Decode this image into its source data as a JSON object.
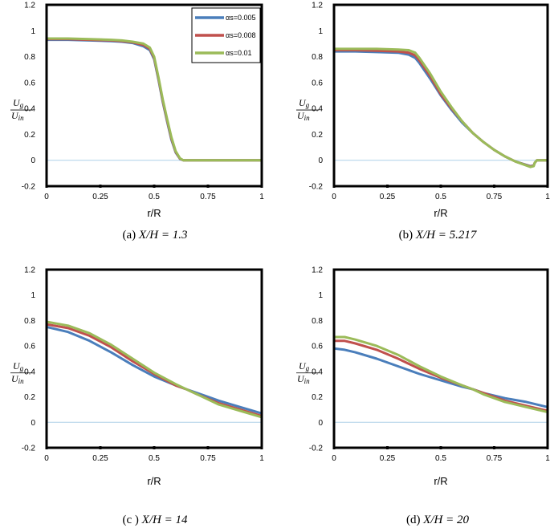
{
  "figure": {
    "ylabel_num": "U",
    "ylabel_num_sub": "g",
    "ylabel_den": "U",
    "ylabel_den_sub": "in",
    "legend": [
      "αs=0.005",
      "αs=0.008",
      "αs=0.01"
    ],
    "colors": {
      "series": [
        "#4a7ebb",
        "#c0504d",
        "#9bbb59"
      ],
      "zero_line": "#aed1e8",
      "frame": "#000000"
    }
  },
  "chart_data": [
    {
      "type": "line",
      "panel": "a",
      "caption_prefix": "(a) ",
      "caption_math": "X/H = 1.3",
      "xlabel": "r/R",
      "xlim": [
        0,
        1
      ],
      "ylim": [
        -0.2,
        1.2
      ],
      "xticks": [
        "0",
        "0.25",
        "0.5",
        "0.75",
        "1"
      ],
      "yticks": [
        "-0.2",
        "0",
        "0.2",
        "0.4",
        "0.6",
        "0.8",
        "1",
        "1.2"
      ],
      "show_legend": true,
      "x": [
        0,
        0.1,
        0.2,
        0.3,
        0.35,
        0.4,
        0.45,
        0.48,
        0.5,
        0.52,
        0.54,
        0.56,
        0.58,
        0.6,
        0.62,
        0.635,
        0.65,
        0.7,
        0.8,
        0.9,
        1.0
      ],
      "series": [
        {
          "name": "αs=0.005",
          "values": [
            0.93,
            0.93,
            0.925,
            0.92,
            0.915,
            0.905,
            0.88,
            0.85,
            0.78,
            0.62,
            0.45,
            0.3,
            0.16,
            0.06,
            0.01,
            0.0,
            0.0,
            0.0,
            0.0,
            0.0,
            0.0
          ]
        },
        {
          "name": "αs=0.008",
          "values": [
            0.935,
            0.935,
            0.93,
            0.925,
            0.92,
            0.91,
            0.89,
            0.86,
            0.79,
            0.63,
            0.46,
            0.31,
            0.17,
            0.065,
            0.012,
            0.0,
            0.0,
            0.0,
            0.0,
            0.0,
            0.0
          ]
        },
        {
          "name": "αs=0.01",
          "values": [
            0.94,
            0.94,
            0.935,
            0.93,
            0.925,
            0.915,
            0.9,
            0.87,
            0.8,
            0.64,
            0.47,
            0.32,
            0.18,
            0.07,
            0.015,
            0.0,
            0.0,
            0.0,
            0.0,
            0.0,
            0.0
          ]
        }
      ]
    },
    {
      "type": "line",
      "panel": "b",
      "caption_prefix": "(b) ",
      "caption_math": "X/H = 5.217",
      "xlabel": "r/R",
      "xlim": [
        0,
        1
      ],
      "ylim": [
        -0.2,
        1.2
      ],
      "xticks": [
        "0",
        "0.25",
        "0.5",
        "0.75",
        "1"
      ],
      "yticks": [
        "-0.2",
        "0",
        "0.2",
        "0.4",
        "0.6",
        "0.8",
        "1",
        "1.2"
      ],
      "show_legend": false,
      "x": [
        0,
        0.1,
        0.2,
        0.3,
        0.35,
        0.38,
        0.4,
        0.45,
        0.5,
        0.55,
        0.6,
        0.65,
        0.7,
        0.75,
        0.8,
        0.85,
        0.9,
        0.92,
        0.935,
        0.94,
        0.95,
        1.0
      ],
      "series": [
        {
          "name": "αs=0.005",
          "values": [
            0.84,
            0.84,
            0.835,
            0.83,
            0.815,
            0.79,
            0.75,
            0.63,
            0.5,
            0.39,
            0.29,
            0.21,
            0.14,
            0.08,
            0.03,
            -0.01,
            -0.035,
            -0.045,
            -0.04,
            -0.02,
            0.0,
            0.0
          ]
        },
        {
          "name": "αs=0.008",
          "values": [
            0.85,
            0.85,
            0.845,
            0.84,
            0.83,
            0.81,
            0.77,
            0.65,
            0.51,
            0.4,
            0.3,
            0.21,
            0.14,
            0.08,
            0.03,
            -0.01,
            -0.038,
            -0.048,
            -0.042,
            -0.02,
            0.0,
            0.0
          ]
        },
        {
          "name": "αs=0.01",
          "values": [
            0.86,
            0.86,
            0.86,
            0.855,
            0.85,
            0.83,
            0.79,
            0.67,
            0.53,
            0.41,
            0.3,
            0.21,
            0.14,
            0.08,
            0.03,
            -0.01,
            -0.04,
            -0.052,
            -0.045,
            -0.02,
            0.0,
            0.0
          ]
        }
      ]
    },
    {
      "type": "line",
      "panel": "c",
      "caption_prefix": "(c ) ",
      "caption_math": "X/H = 14",
      "xlabel": "r/R",
      "xlim": [
        0,
        1
      ],
      "ylim": [
        -0.2,
        1.2
      ],
      "xticks": [
        "0",
        "0.25",
        "0.5",
        "0.75",
        "1"
      ],
      "yticks": [
        "-0.2",
        "0",
        "0.2",
        "0.4",
        "0.6",
        "0.8",
        "1",
        "1.2"
      ],
      "show_legend": false,
      "x": [
        0,
        0.1,
        0.2,
        0.3,
        0.4,
        0.5,
        0.6,
        0.65,
        0.7,
        0.8,
        0.9,
        1.0
      ],
      "series": [
        {
          "name": "αs=0.005",
          "values": [
            0.75,
            0.71,
            0.64,
            0.55,
            0.45,
            0.36,
            0.29,
            0.26,
            0.23,
            0.17,
            0.12,
            0.07
          ]
        },
        {
          "name": "αs=0.008",
          "values": [
            0.77,
            0.74,
            0.68,
            0.59,
            0.48,
            0.38,
            0.29,
            0.26,
            0.22,
            0.15,
            0.1,
            0.05
          ]
        },
        {
          "name": "αs=0.01",
          "values": [
            0.79,
            0.76,
            0.7,
            0.61,
            0.5,
            0.39,
            0.3,
            0.26,
            0.22,
            0.14,
            0.09,
            0.04
          ]
        }
      ]
    },
    {
      "type": "line",
      "panel": "d",
      "caption_prefix": "(d) ",
      "caption_math": "X/H = 20",
      "xlabel": "r/R",
      "xlim": [
        0,
        1
      ],
      "ylim": [
        -0.2,
        1.2
      ],
      "xticks": [
        "0",
        "0.25",
        "0.5",
        "0.75",
        "1"
      ],
      "yticks": [
        "-0.2",
        "0",
        "0.2",
        "0.4",
        "0.6",
        "0.8",
        "1",
        "1.2"
      ],
      "show_legend": false,
      "x": [
        0,
        0.05,
        0.1,
        0.2,
        0.3,
        0.4,
        0.5,
        0.6,
        0.65,
        0.7,
        0.8,
        0.9,
        1.0
      ],
      "series": [
        {
          "name": "αs=0.005",
          "values": [
            0.58,
            0.57,
            0.55,
            0.5,
            0.44,
            0.38,
            0.33,
            0.28,
            0.26,
            0.23,
            0.19,
            0.16,
            0.12
          ]
        },
        {
          "name": "αs=0.008",
          "values": [
            0.64,
            0.64,
            0.62,
            0.57,
            0.5,
            0.42,
            0.35,
            0.29,
            0.26,
            0.23,
            0.17,
            0.13,
            0.09
          ]
        },
        {
          "name": "αs=0.01",
          "values": [
            0.67,
            0.67,
            0.65,
            0.6,
            0.53,
            0.44,
            0.36,
            0.29,
            0.26,
            0.22,
            0.16,
            0.12,
            0.08
          ]
        }
      ]
    }
  ]
}
